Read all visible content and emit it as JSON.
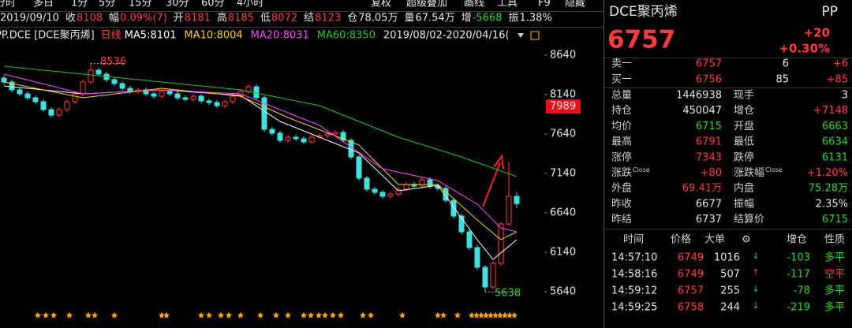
{
  "toolbar": {
    "periods": [
      "分时",
      "多日",
      "1分",
      "5分",
      "15分",
      "30分",
      "60分",
      "4小时"
    ],
    "tools": [
      "复权",
      "超级叠加",
      "画线",
      "工具",
      "F9",
      "隐藏"
    ]
  },
  "info_bar": {
    "date": "2019/09/10",
    "items": [
      {
        "label": "收",
        "value": "8108"
      },
      {
        "label": "幅",
        "value": "0.09%(7)"
      },
      {
        "label": "开",
        "value": "8181"
      },
      {
        "label": "高",
        "value": "8185"
      },
      {
        "label": "低",
        "value": "8072"
      },
      {
        "label": "结",
        "value": "8123"
      },
      {
        "label": "仓",
        "value": "78.05万"
      },
      {
        "label": "量",
        "value": "67.54万"
      },
      {
        "label": "增",
        "value": "-5668"
      },
      {
        "label": "振",
        "value": "1.38%"
      }
    ]
  },
  "legend_bar": {
    "symbol": "PP.DCE [DCE聚丙烯]",
    "period": "日线",
    "range": "2019/08/02-2020/04/16("
  },
  "chart_data": {
    "type": "candlestick",
    "xlim": [
      -0.5,
      68.5
    ],
    "ylim": [
      5440,
      8940
    ],
    "yticks": [
      5640,
      6140,
      6640,
      7140,
      7640,
      8140,
      8640
    ],
    "marker": 7989,
    "up_color": "#ff3c3c",
    "down_color": "#3fe0e0",
    "ohlc": [
      [
        8350,
        8380,
        8270,
        8300
      ],
      [
        8300,
        8330,
        8170,
        8200
      ],
      [
        8200,
        8230,
        8120,
        8150
      ],
      [
        8150,
        8180,
        8070,
        8100
      ],
      [
        8100,
        8130,
        8020,
        8050
      ],
      [
        8050,
        8080,
        7920,
        7950
      ],
      [
        7950,
        7980,
        7850,
        7880
      ],
      [
        7880,
        7980,
        7850,
        7950
      ],
      [
        7950,
        8080,
        7920,
        8050
      ],
      [
        8050,
        8180,
        8020,
        8150
      ],
      [
        8150,
        8330,
        8120,
        8300
      ],
      [
        8300,
        8536,
        8270,
        8450
      ],
      [
        8450,
        8480,
        8370,
        8400
      ],
      [
        8400,
        8430,
        8300,
        8330
      ],
      [
        8330,
        8360,
        8250,
        8280
      ],
      [
        8280,
        8310,
        8190,
        8220
      ],
      [
        8220,
        8250,
        8150,
        8180
      ],
      [
        8180,
        8230,
        8150,
        8200
      ],
      [
        8200,
        8230,
        8120,
        8150
      ],
      [
        8150,
        8180,
        8090,
        8120
      ],
      [
        8120,
        8210,
        8090,
        8180
      ],
      [
        8180,
        8210,
        8120,
        8150
      ],
      [
        8150,
        8180,
        8070,
        8100
      ],
      [
        8100,
        8130,
        8050,
        8080
      ],
      [
        8080,
        8150,
        8050,
        8120
      ],
      [
        8120,
        8150,
        8030,
        8060
      ],
      [
        8060,
        8090,
        8010,
        8040
      ],
      [
        8040,
        8070,
        7970,
        8000
      ],
      [
        8000,
        8080,
        7970,
        8050
      ],
      [
        8050,
        8150,
        8020,
        8120
      ],
      [
        8120,
        8210,
        8090,
        8180
      ],
      [
        8180,
        8270,
        8150,
        8240
      ],
      [
        8240,
        8270,
        8070,
        8100
      ],
      [
        8100,
        8130,
        7670,
        7700
      ],
      [
        7700,
        7730,
        7620,
        7650
      ],
      [
        7650,
        7680,
        7530,
        7560
      ],
      [
        7560,
        7630,
        7530,
        7600
      ],
      [
        7600,
        7630,
        7550,
        7580
      ],
      [
        7580,
        7610,
        7510,
        7540
      ],
      [
        7540,
        7630,
        7510,
        7600
      ],
      [
        7600,
        7650,
        7570,
        7620
      ],
      [
        7620,
        7670,
        7590,
        7640
      ],
      [
        7640,
        7690,
        7610,
        7660
      ],
      [
        7660,
        7690,
        7530,
        7560
      ],
      [
        7560,
        7590,
        7320,
        7350
      ],
      [
        7350,
        7380,
        7050,
        7080
      ],
      [
        7080,
        7110,
        6910,
        6940
      ],
      [
        6940,
        6970,
        6870,
        6900
      ],
      [
        6900,
        6930,
        6820,
        6850
      ],
      [
        6850,
        6910,
        6820,
        6880
      ],
      [
        6880,
        6970,
        6850,
        6940
      ],
      [
        6940,
        7030,
        6910,
        7000
      ],
      [
        7000,
        7030,
        6950,
        6980
      ],
      [
        6980,
        7090,
        6950,
        7060
      ],
      [
        7060,
        7090,
        6950,
        6980
      ],
      [
        6980,
        7010,
        6920,
        6950
      ],
      [
        6950,
        6980,
        6770,
        6800
      ],
      [
        6800,
        6830,
        6570,
        6600
      ],
      [
        6600,
        6630,
        6370,
        6400
      ],
      [
        6400,
        6430,
        6170,
        6200
      ],
      [
        6200,
        6230,
        5920,
        5950
      ],
      [
        5950,
        5980,
        5638,
        5700
      ],
      [
        5700,
        6030,
        5670,
        6000
      ],
      [
        6000,
        6530,
        5970,
        6500
      ],
      [
        6500,
        7290,
        6480,
        6850
      ],
      [
        6850,
        6900,
        6700,
        6757
      ]
    ],
    "series": [
      {
        "name": "MA5:8101",
        "color": "#ffffff",
        "x": [
          0,
          10,
          20,
          30,
          35,
          45,
          50,
          55,
          60,
          62,
          65
        ],
        "values": [
          8250,
          8150,
          8200,
          8130,
          7800,
          7400,
          6920,
          6990,
          6300,
          6050,
          6300
        ]
      },
      {
        "name": "MA10:8004",
        "color": "#ffd200",
        "x": [
          0,
          10,
          20,
          30,
          36,
          45,
          50,
          55,
          60,
          63,
          65
        ],
        "values": [
          8300,
          8100,
          8220,
          8120,
          7850,
          7500,
          7000,
          7000,
          6550,
          6300,
          6400
        ]
      },
      {
        "name": "MA20:8031",
        "color": "#ff44ff",
        "x": [
          0,
          10,
          20,
          30,
          40,
          48,
          55,
          60,
          63,
          65
        ],
        "values": [
          8400,
          8150,
          8200,
          8150,
          7750,
          7200,
          7050,
          6750,
          6450,
          6400
        ]
      },
      {
        "name": "MA60:8350",
        "color": "#22c422",
        "x": [
          0,
          15,
          30,
          40,
          50,
          58,
          65
        ],
        "values": [
          8500,
          8350,
          8200,
          8000,
          7600,
          7350,
          7100
        ]
      }
    ],
    "annotations": [
      {
        "x": 11,
        "value": 8536
      },
      {
        "x": 61,
        "value": 5638
      }
    ]
  },
  "quote": {
    "name": "DCE聚丙烯",
    "code": "PP",
    "price": "6757",
    "change": "+20",
    "change_pct": "+0.30%",
    "book": [
      [
        "卖一",
        "6757",
        "6",
        "+6"
      ],
      [
        "买一",
        "6756",
        "85",
        "+85"
      ]
    ],
    "stats": [
      {
        "label": "总量",
        "value": "1446938"
      },
      {
        "label": "现手",
        "value": "3"
      },
      {
        "label": "持仓",
        "value": "450047"
      },
      {
        "label": "增仓",
        "value": "+7148"
      },
      {
        "label": "均价",
        "value": "6715"
      },
      {
        "label": "开盘",
        "value": "6663"
      },
      {
        "label": "最高",
        "value": "6791"
      },
      {
        "label": "最低",
        "value": "6634"
      },
      {
        "label": "涨停",
        "value": "7343"
      },
      {
        "label": "跌停",
        "value": "6131"
      },
      {
        "label": "涨跌",
        "sup": "Close",
        "value": "+80"
      },
      {
        "label": "涨跌幅",
        "sup": "Close",
        "value": "+1.20%"
      },
      {
        "label": "外盘",
        "value": "69.41万"
      },
      {
        "label": "内盘",
        "value": "75.28万"
      },
      {
        "label": "昨收",
        "value": "6677"
      },
      {
        "label": "振幅",
        "value": "2.35%"
      },
      {
        "label": "昨结",
        "value": "6737"
      },
      {
        "label": "结算价",
        "value": "6715"
      }
    ]
  },
  "trades": {
    "header": [
      "时间",
      "价格",
      "大单",
      "⚙",
      "增仓",
      "性质"
    ],
    "rows": [
      [
        "14:57:10",
        "6749",
        "1016",
        "↓",
        "-103",
        "多平"
      ],
      [
        "14:58:16",
        "6749",
        "507",
        "↑",
        "-117",
        "空平"
      ],
      [
        "14:59:12",
        "6757",
        "255",
        "↓",
        "-78",
        "多平"
      ],
      [
        "14:59:25",
        "6758",
        "244",
        "↓",
        "-219",
        "多平"
      ]
    ]
  }
}
